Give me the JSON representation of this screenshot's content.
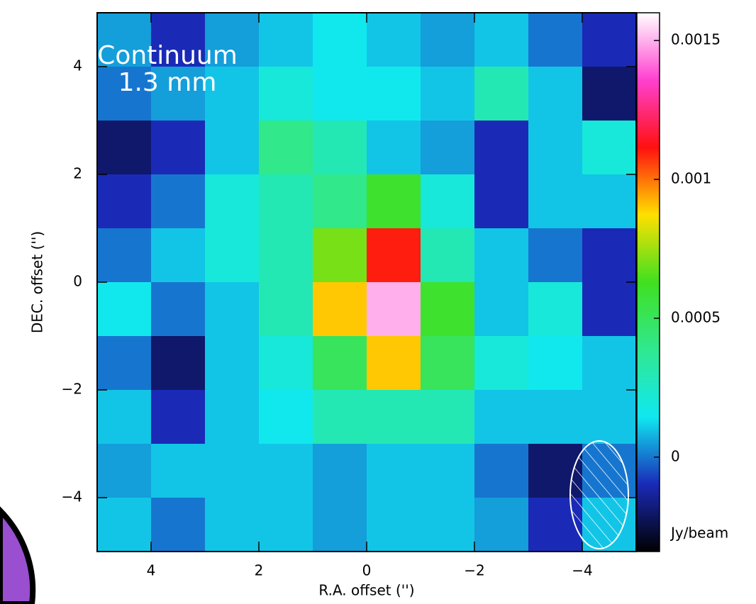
{
  "chart_data": {
    "type": "heatmap",
    "annotation": [
      "Continuum",
      "1.3 mm"
    ],
    "xlabel": "R.A. offset ('')",
    "ylabel": "DEC. offset ('')",
    "colorbar_label": "Jy/beam",
    "xlim": [
      5,
      -5
    ],
    "ylim": [
      -5,
      5
    ],
    "xticks": [
      4,
      2,
      0,
      {
        "value": -2,
        "label": "−2"
      },
      {
        "value": -4,
        "label": "−4"
      }
    ],
    "yticks": [
      4,
      2,
      0,
      {
        "value": -2,
        "label": "−2"
      },
      {
        "value": -4,
        "label": "−4"
      }
    ],
    "clim": [
      -0.00034,
      0.0016
    ],
    "cticks": [
      0.0015,
      0.001,
      0.0005,
      0
    ],
    "colormap": [
      "#000000",
      "#1a2ab8",
      "#10e8f0",
      "#30e890",
      "#40e020",
      "#ffe000",
      "#ff1010",
      "#ff40d0",
      "#ffffff"
    ],
    "x": [
      4.5,
      3.5,
      2.5,
      1.5,
      0.5,
      -0.5,
      -1.5,
      -2.5,
      -3.5,
      -4.5
    ],
    "y": [
      4.5,
      3.5,
      2.5,
      1.5,
      0.5,
      -0.5,
      -1.5,
      -2.5,
      -3.5,
      -4.5
    ],
    "z": [
      [
        5e-05,
        -0.0001,
        5e-05,
        0.0001,
        0.00015,
        0.0001,
        5e-05,
        0.0001,
        0,
        -0.0001
      ],
      [
        0,
        5e-05,
        0.0001,
        0.0002,
        0.00015,
        0.00015,
        0.0001,
        0.0003,
        0.0001,
        -0.0002
      ],
      [
        -0.0002,
        -0.0001,
        0.0001,
        0.0004,
        0.0003,
        0.0001,
        5e-05,
        -0.0001,
        0.0001,
        0.0002
      ],
      [
        -0.0001,
        0,
        0.0002,
        0.0003,
        0.0004,
        0.0006,
        0.0002,
        -0.0001,
        0.0001,
        0.0001
      ],
      [
        0,
        0.0001,
        0.0002,
        0.0003,
        0.0007,
        0.0011,
        0.0003,
        0.0001,
        0,
        -0.0001
      ],
      [
        0.00015,
        0,
        0.0001,
        0.0003,
        0.0009,
        0.0015,
        0.0006,
        0.0001,
        0.0002,
        -0.0001
      ],
      [
        0,
        -0.0002,
        0.0001,
        0.0002,
        0.0005,
        0.0009,
        0.0005,
        0.0002,
        0.00015,
        0.0001
      ],
      [
        0.0001,
        -0.0001,
        0.0001,
        0.00015,
        0.0003,
        0.0003,
        0.0003,
        0.0001,
        0.0001,
        0.0001
      ],
      [
        5e-05,
        0.0001,
        0.0001,
        0.0001,
        5e-05,
        0.0001,
        0.0001,
        0,
        -0.0002,
        0
      ],
      [
        0.0001,
        0,
        0.0001,
        0.0001,
        5e-05,
        0.0001,
        0.0001,
        5e-05,
        -0.0001,
        0.0001
      ]
    ]
  }
}
